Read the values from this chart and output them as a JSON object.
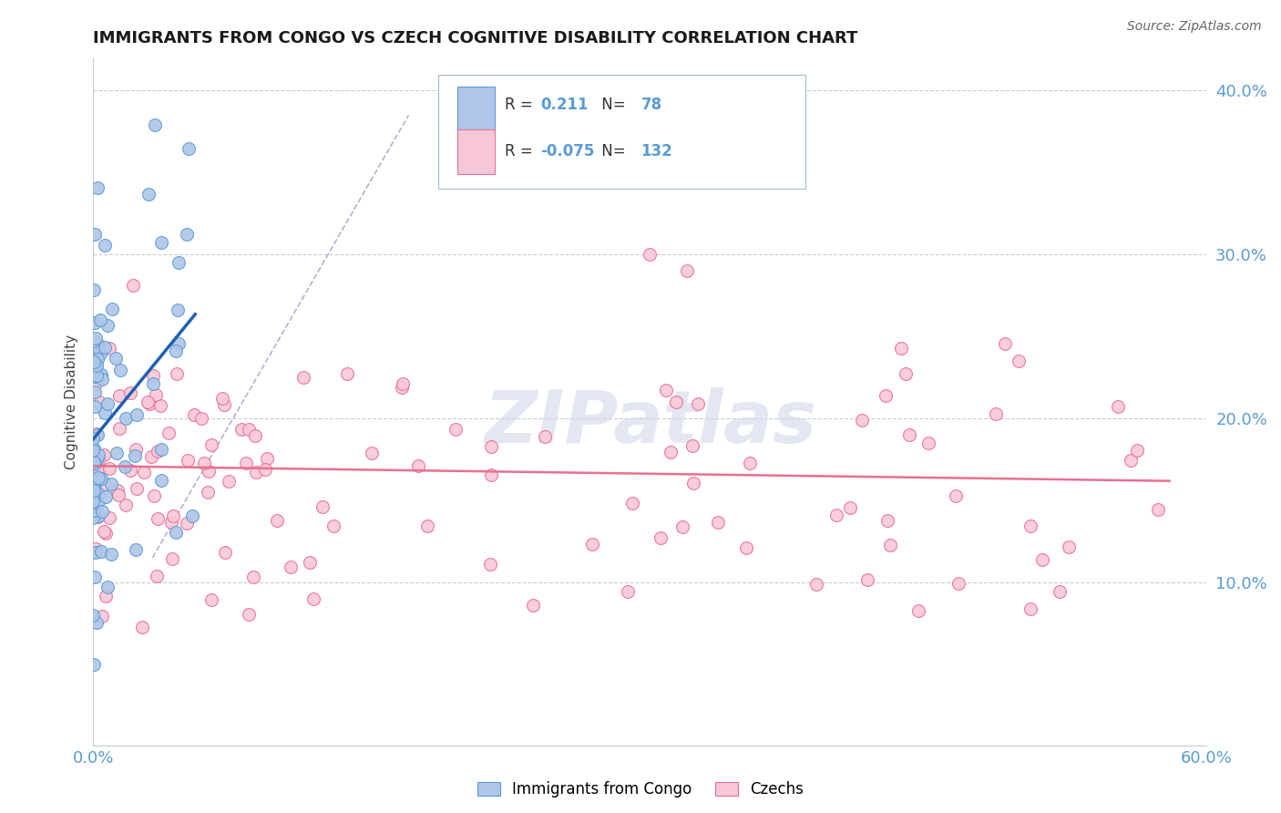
{
  "title": "IMMIGRANTS FROM CONGO VS CZECH COGNITIVE DISABILITY CORRELATION CHART",
  "source": "Source: ZipAtlas.com",
  "ylabel": "Cognitive Disability",
  "xmin": 0.0,
  "xmax": 0.6,
  "ymin": 0.0,
  "ymax": 0.42,
  "y_ticks": [
    0.0,
    0.1,
    0.2,
    0.3,
    0.4
  ],
  "y_tick_labels_right": [
    "",
    "10.0%",
    "20.0%",
    "30.0%",
    "40.0%"
  ],
  "x_tick_labels": [
    "0.0%",
    "60.0%"
  ],
  "congo_R": 0.211,
  "congo_N": 78,
  "czech_R": -0.075,
  "czech_N": 132,
  "watermark": "ZIPatlas",
  "background_color": "#ffffff",
  "grid_color": "#ccccdd",
  "scatter_congo_color": "#aec6e8",
  "scatter_congo_edge": "#5b9bd5",
  "scatter_czech_color": "#f9c8d8",
  "scatter_czech_edge": "#e87090",
  "trendline_congo_color": "#2060b0",
  "trendline_czech_color": "#e87090",
  "dash_line_color": "#aaaacc",
  "tick_color": "#5b9bd5",
  "legend_box_color": "#e8eef8",
  "legend_edge_color": "#aabbcc"
}
